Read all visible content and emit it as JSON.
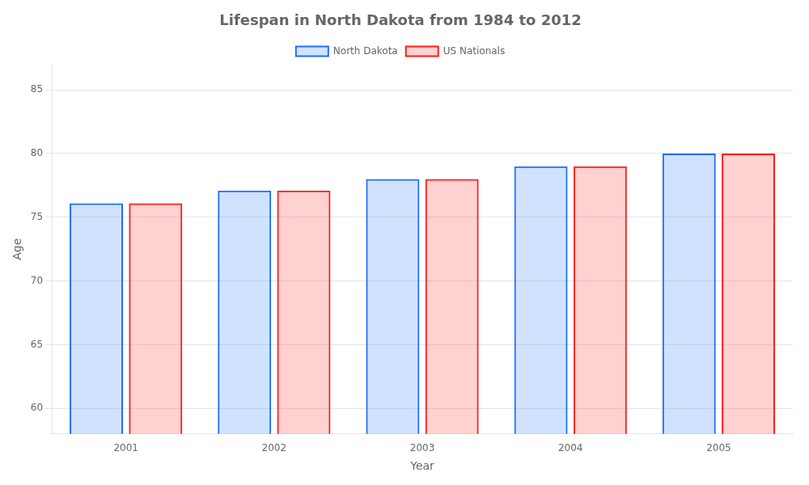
{
  "chart_data": {
    "type": "bar",
    "title": "Lifespan in North Dakota from 1984 to 2012",
    "xlabel": "Year",
    "ylabel": "Age",
    "categories": [
      "2001",
      "2002",
      "2003",
      "2004",
      "2005"
    ],
    "series": [
      {
        "name": "North Dakota",
        "color": "#1a6eff",
        "values": [
          76.1,
          77.1,
          78.0,
          79.0,
          80.0
        ]
      },
      {
        "name": "US Nationals",
        "color": "#ff1a1a",
        "values": [
          76.1,
          77.1,
          78.0,
          79.0,
          80.0
        ]
      }
    ],
    "ylim": [
      58,
      87
    ],
    "yticks": [
      60,
      65,
      70,
      75,
      80,
      85
    ],
    "grid": true,
    "legend": "top"
  }
}
